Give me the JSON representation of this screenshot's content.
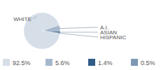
{
  "chart_data": {
    "type": "pie",
    "categories": [
      "WHITE",
      "A.I.",
      "ASIAN",
      "HISPANIC"
    ],
    "values": [
      92.5,
      5.6,
      1.4,
      0.5
    ],
    "value_labels": [
      "92.5%",
      "5.6%",
      "1.4%",
      "0.5%"
    ],
    "colors": [
      "#d6dee8",
      "#a6b8cc",
      "#2f5b87",
      "#7e98b3"
    ],
    "legend": "bottom"
  }
}
